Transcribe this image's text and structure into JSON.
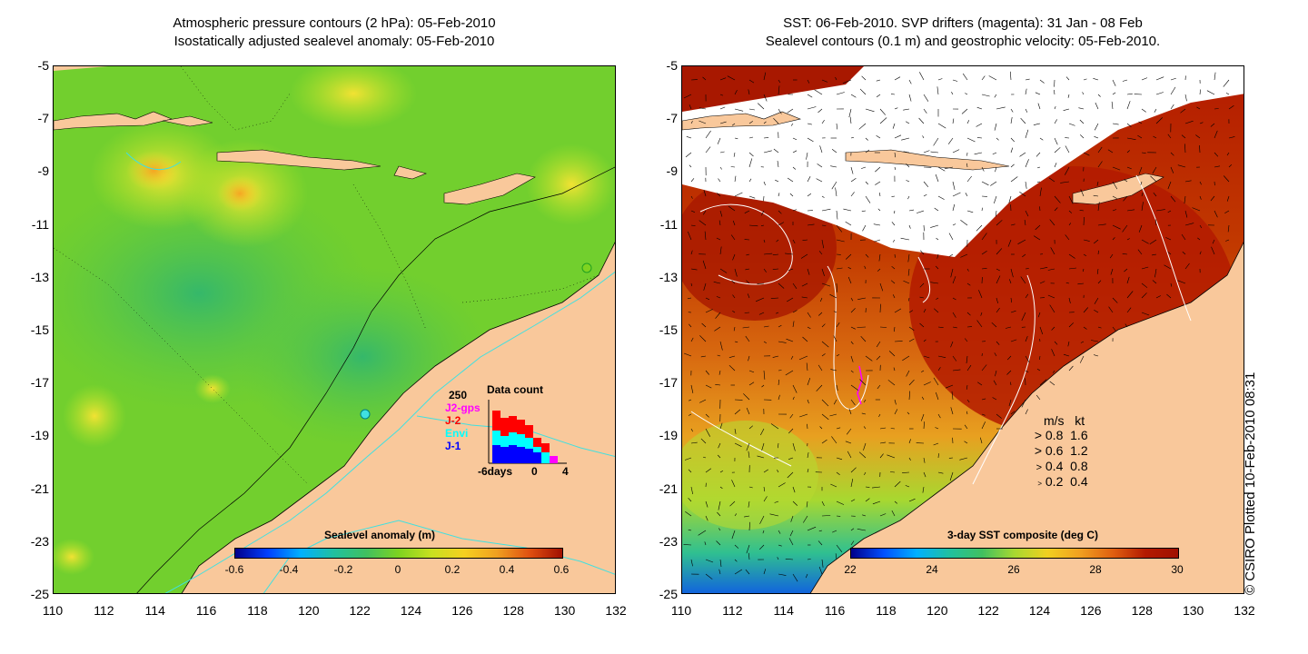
{
  "left_panel": {
    "title_line1": "Atmospheric pressure contours (2 hPa): 05-Feb-2010",
    "title_line2": "Isostatically adjusted sealevel anomaly: 05-Feb-2010",
    "colorbar": {
      "title": "Sealevel anomaly (m)",
      "ticks": [
        "-0.6",
        "-0.4",
        "-0.2",
        "0",
        "0.2",
        "0.4",
        "0.6"
      ]
    },
    "data_count": {
      "title": "Data count",
      "ymax_label": "250",
      "series_labels": [
        "J2-gps",
        "J-2",
        "Envi",
        "J-1"
      ],
      "series_colors": [
        "#ff00ff",
        "#ff0000",
        "#00ffff",
        "#0000ff"
      ],
      "x_labels": [
        "-6days",
        "0",
        "4"
      ]
    }
  },
  "right_panel": {
    "title_line1": "SST: 06-Feb-2010. SVP drifters (magenta): 31 Jan - 08 Feb",
    "title_line2": "Sealevel contours (0.1 m) and geostrophic velocity: 05-Feb-2010.",
    "colorbar": {
      "title": "3-day SST composite (deg C)",
      "ticks": [
        "22",
        "24",
        "26",
        "28",
        "30"
      ]
    },
    "velocity_legend": {
      "header_ms": "m/s",
      "header_kt": "kt",
      "rows": [
        {
          "ms": "0.8",
          "kt": "1.6"
        },
        {
          "ms": "0.6",
          "kt": "1.2"
        },
        {
          "ms": "0.4",
          "kt": "0.8"
        },
        {
          "ms": "0.2",
          "kt": "0.4"
        }
      ]
    }
  },
  "axes": {
    "y_labels": [
      "-5",
      "-7",
      "-9",
      "-11",
      "-13",
      "-15",
      "-17",
      "-19",
      "-21",
      "-23",
      "-25"
    ],
    "x_labels": [
      "110",
      "112",
      "114",
      "116",
      "118",
      "120",
      "122",
      "124",
      "126",
      "128",
      "130",
      "132"
    ]
  },
  "credit": "© CSIRO Plotted 10-Feb-2010 08:31",
  "colors": {
    "land": "#f9c89b",
    "sla_base": "#7ed320",
    "sst_hot": "#b31a00",
    "cyan_contour": "#40e0e0"
  }
}
